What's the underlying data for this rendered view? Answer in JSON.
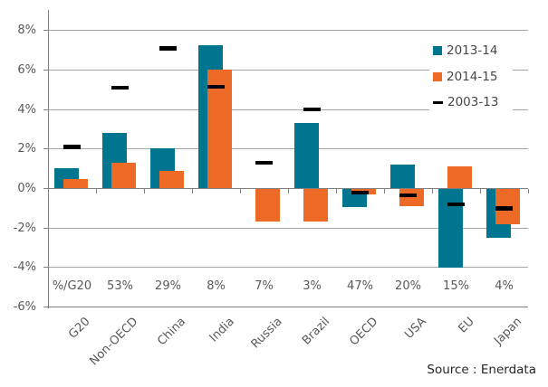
{
  "chart_data": {
    "type": "bar",
    "title": "",
    "xlabel": "",
    "ylabel": "",
    "categories": [
      "G20",
      "Non-OECD",
      "China",
      "India",
      "Russia",
      "Brazil",
      "OECD",
      "USA",
      "EU",
      "Japan"
    ],
    "series": [
      {
        "name": "2013-14",
        "style": "bar",
        "color": "#00758F",
        "values": [
          1.05,
          2.8,
          2.05,
          7.25,
          0,
          3.3,
          -0.95,
          1.2,
          -4.0,
          -2.5
        ]
      },
      {
        "name": "2014-15",
        "style": "bar",
        "color": "#EC6A26",
        "values": [
          0.5,
          1.3,
          0.9,
          6.0,
          -1.65,
          -1.65,
          -0.3,
          -0.9,
          1.1,
          -1.8
        ]
      },
      {
        "name": "2003-13",
        "style": "dash",
        "color": "#000000",
        "values": [
          2.1,
          5.1,
          7.1,
          5.15,
          1.3,
          4.0,
          -0.2,
          -0.35,
          -0.8,
          -1.0
        ]
      }
    ],
    "share_row": [
      "%/G20",
      "53%",
      "29%",
      "8%",
      "7%",
      "3%",
      "47%",
      "20%",
      "15%",
      "4%"
    ],
    "y_ticks": [
      "8%",
      "6%",
      "4%",
      "2%",
      "0%",
      "-2%",
      "-4%",
      "-6%"
    ],
    "y_tick_values": [
      8,
      6,
      4,
      2,
      0,
      -2,
      -4,
      -6
    ],
    "ylim": [
      -6,
      9
    ],
    "grid": true,
    "legend_position": "inside-top-right",
    "source": "Source : Enerdata"
  },
  "colors": {
    "background": "#FFFFFF",
    "gridline": "#A6A6A6",
    "axis": "#7F7F7F",
    "tick_label": "#595959",
    "legend_text": "#474747",
    "source_text": "#262626",
    "series_teal": "#00758F",
    "series_orange": "#EC6A26",
    "series_dash": "#000000"
  }
}
